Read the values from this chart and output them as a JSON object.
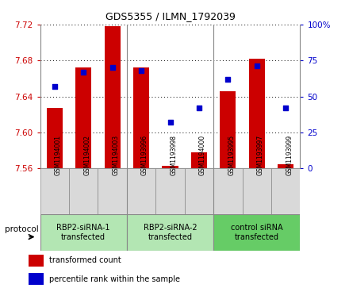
{
  "title": "GDS5355 / ILMN_1792039",
  "samples": [
    "GSM1194001",
    "GSM1194002",
    "GSM1194003",
    "GSM1193996",
    "GSM1193998",
    "GSM1194000",
    "GSM1193995",
    "GSM1193997",
    "GSM1193999"
  ],
  "red_values": [
    7.627,
    7.672,
    7.718,
    7.672,
    7.563,
    7.578,
    7.646,
    7.682,
    7.565
  ],
  "blue_values": [
    57,
    67,
    70,
    68,
    32,
    42,
    62,
    71,
    42
  ],
  "ylim_left": [
    7.56,
    7.72
  ],
  "ylim_right": [
    0,
    100
  ],
  "yticks_left": [
    7.56,
    7.6,
    7.64,
    7.68,
    7.72
  ],
  "yticks_right": [
    0,
    25,
    50,
    75,
    100
  ],
  "protocol_groups": [
    {
      "label": "RBP2-siRNA-1\ntransfected",
      "indices": [
        0,
        1,
        2
      ],
      "color": "#b3e6b3"
    },
    {
      "label": "RBP2-siRNA-2\ntransfected",
      "indices": [
        3,
        4,
        5
      ],
      "color": "#b3e6b3"
    },
    {
      "label": "control siRNA\ntransfected",
      "indices": [
        6,
        7,
        8
      ],
      "color": "#66cc66"
    }
  ],
  "bar_color": "#cc0000",
  "dot_color": "#0000cc",
  "bar_width": 0.55,
  "left_tick_color": "#cc0000",
  "right_tick_color": "#0000cc",
  "protocol_label": "protocol",
  "legend_red": "transformed count",
  "legend_blue": "percentile rank within the sample",
  "ylabel_right_ticks": [
    "0",
    "25",
    "50",
    "75",
    "100%"
  ],
  "sample_box_color": "#d9d9d9",
  "separator_color": "#888888"
}
